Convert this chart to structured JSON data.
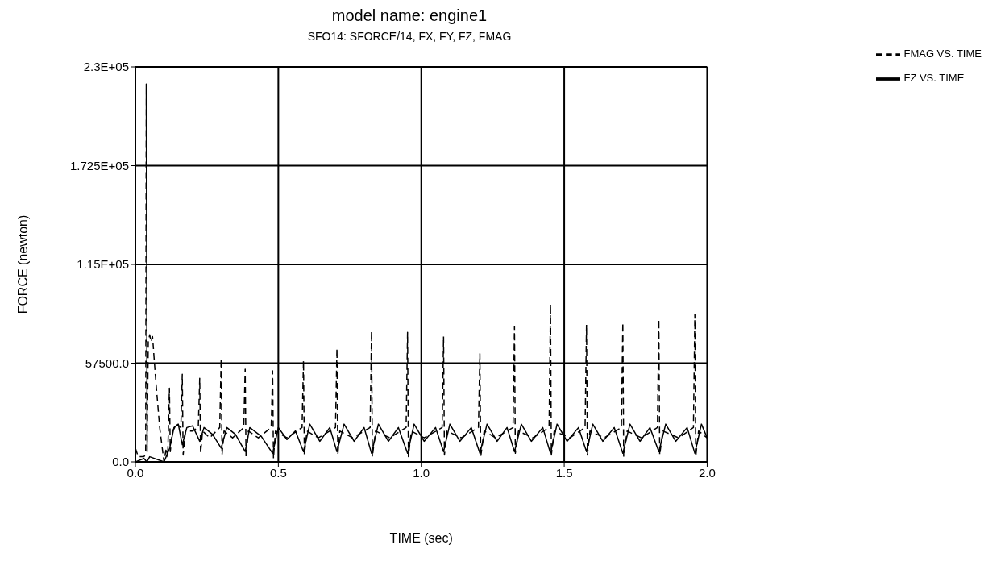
{
  "chart_data": {
    "type": "line",
    "title": "model name: engine1",
    "subtitle": "SFO14: SFORCE/14, FX, FY, FZ, FMAG",
    "xlabel": "TIME (sec)",
    "ylabel": "FORCE (newton)",
    "xlim": [
      0,
      2
    ],
    "xticks": [
      {
        "value": 0,
        "label": "0.0"
      },
      {
        "value": 0.5,
        "label": "0.5"
      },
      {
        "value": 1,
        "label": "1.0"
      },
      {
        "value": 1.5,
        "label": "1.5"
      },
      {
        "value": 2,
        "label": "2.0"
      }
    ],
    "ylim": [
      0,
      230000
    ],
    "yticks": [
      {
        "value": 0,
        "label": "0.0"
      },
      {
        "value": 57500,
        "label": "57500.0"
      },
      {
        "value": 115000,
        "label": "1.15E+05"
      },
      {
        "value": 172500,
        "label": "1.725E+05"
      },
      {
        "value": 230000,
        "label": "2.3E+05"
      }
    ],
    "grid": true,
    "legend": "top right",
    "marker": "none",
    "series": [
      {
        "name": "FZ VS. TIME",
        "color": "#000000",
        "line_style": "solid",
        "x": [
          0,
          0.03,
          0.04,
          0.05,
          0.1,
          0.12,
          0.135,
          0.15,
          0.164,
          0.18,
          0.2,
          0.225,
          0.24,
          0.27,
          0.3,
          0.32,
          0.35,
          0.384,
          0.4,
          0.44,
          0.48,
          0.5,
          0.53,
          0.56,
          0.588,
          0.61,
          0.645,
          0.68,
          0.705,
          0.73,
          0.765,
          0.8,
          0.826,
          0.85,
          0.885,
          0.92,
          0.952,
          0.975,
          1.01,
          1.05,
          1.078,
          1.1,
          1.135,
          1.175,
          1.205,
          1.23,
          1.265,
          1.3,
          1.326,
          1.35,
          1.385,
          1.425,
          1.452,
          1.475,
          1.51,
          1.55,
          1.578,
          1.6,
          1.635,
          1.675,
          1.705,
          1.73,
          1.765,
          1.8,
          1.831,
          1.855,
          1.89,
          1.93,
          1.957,
          1.98,
          2.0
        ],
        "values": [
          0,
          2000,
          0,
          3000,
          0,
          8000,
          20000,
          22000,
          10000,
          20000,
          21000,
          12000,
          20000,
          16000,
          8000,
          20000,
          16000,
          6000,
          20000,
          15000,
          5000,
          20000,
          13000,
          18000,
          6000,
          22000,
          12000,
          20000,
          6000,
          22000,
          12000,
          20000,
          5000,
          22000,
          12000,
          20000,
          5000,
          22000,
          12000,
          20000,
          6000,
          22000,
          12000,
          20000,
          5000,
          22000,
          12000,
          20000,
          6000,
          22000,
          12000,
          20000,
          5000,
          22000,
          12000,
          20000,
          6000,
          22000,
          12000,
          20000,
          5000,
          22000,
          12000,
          20000,
          6000,
          22000,
          12000,
          20000,
          5000,
          22000,
          14000
        ]
      },
      {
        "name": "FMAG VS. TIME",
        "color": "#000000",
        "line_style": "dashed",
        "x": [
          0,
          0.01,
          0.03,
          0.036,
          0.038,
          0.041,
          0.045,
          0.05,
          0.055,
          0.06,
          0.07,
          0.085,
          0.1,
          0.108,
          0.113,
          0.119,
          0.122,
          0.13,
          0.145,
          0.159,
          0.164,
          0.167,
          0.175,
          0.2,
          0.22,
          0.225,
          0.228,
          0.235,
          0.26,
          0.295,
          0.3,
          0.303,
          0.31,
          0.34,
          0.379,
          0.384,
          0.387,
          0.395,
          0.43,
          0.475,
          0.48,
          0.483,
          0.49,
          0.53,
          0.583,
          0.588,
          0.591,
          0.6,
          0.64,
          0.7,
          0.705,
          0.708,
          0.715,
          0.76,
          0.821,
          0.826,
          0.829,
          0.84,
          0.89,
          0.947,
          0.952,
          0.955,
          0.965,
          1.01,
          1.073,
          1.078,
          1.081,
          1.09,
          1.14,
          1.2,
          1.205,
          1.208,
          1.22,
          1.26,
          1.321,
          1.326,
          1.329,
          1.34,
          1.39,
          1.447,
          1.452,
          1.455,
          1.465,
          1.52,
          1.573,
          1.578,
          1.581,
          1.59,
          1.64,
          1.7,
          1.705,
          1.708,
          1.72,
          1.77,
          1.826,
          1.831,
          1.834,
          1.845,
          1.9,
          1.952,
          1.957,
          1.96,
          1.97,
          2.0
        ],
        "values": [
          8000,
          3000,
          3000,
          5000,
          220000,
          6000,
          70000,
          74000,
          70000,
          73000,
          50000,
          20000,
          0,
          8000,
          3000,
          43000,
          6000,
          18000,
          22000,
          20000,
          51000,
          4000,
          18000,
          18000,
          20000,
          48700,
          5000,
          18000,
          14000,
          20000,
          60000,
          4000,
          18000,
          14000,
          20000,
          54000,
          3000,
          18000,
          14000,
          20000,
          53000,
          2000,
          18000,
          14000,
          20000,
          59000,
          4000,
          18000,
          14000,
          20000,
          66000,
          4000,
          18000,
          14000,
          20000,
          76000,
          3000,
          18000,
          14000,
          20000,
          75500,
          3000,
          18000,
          14000,
          20000,
          73000,
          4000,
          18000,
          14000,
          20000,
          63000,
          3000,
          18000,
          14000,
          20000,
          79000,
          5000,
          18000,
          14000,
          20000,
          92000,
          4000,
          18000,
          14000,
          20000,
          80000,
          4000,
          18000,
          14000,
          20000,
          81000,
          3000,
          18000,
          14000,
          20000,
          83000,
          4000,
          18000,
          14000,
          20000,
          86000,
          3000,
          18000,
          14000
        ]
      }
    ]
  }
}
